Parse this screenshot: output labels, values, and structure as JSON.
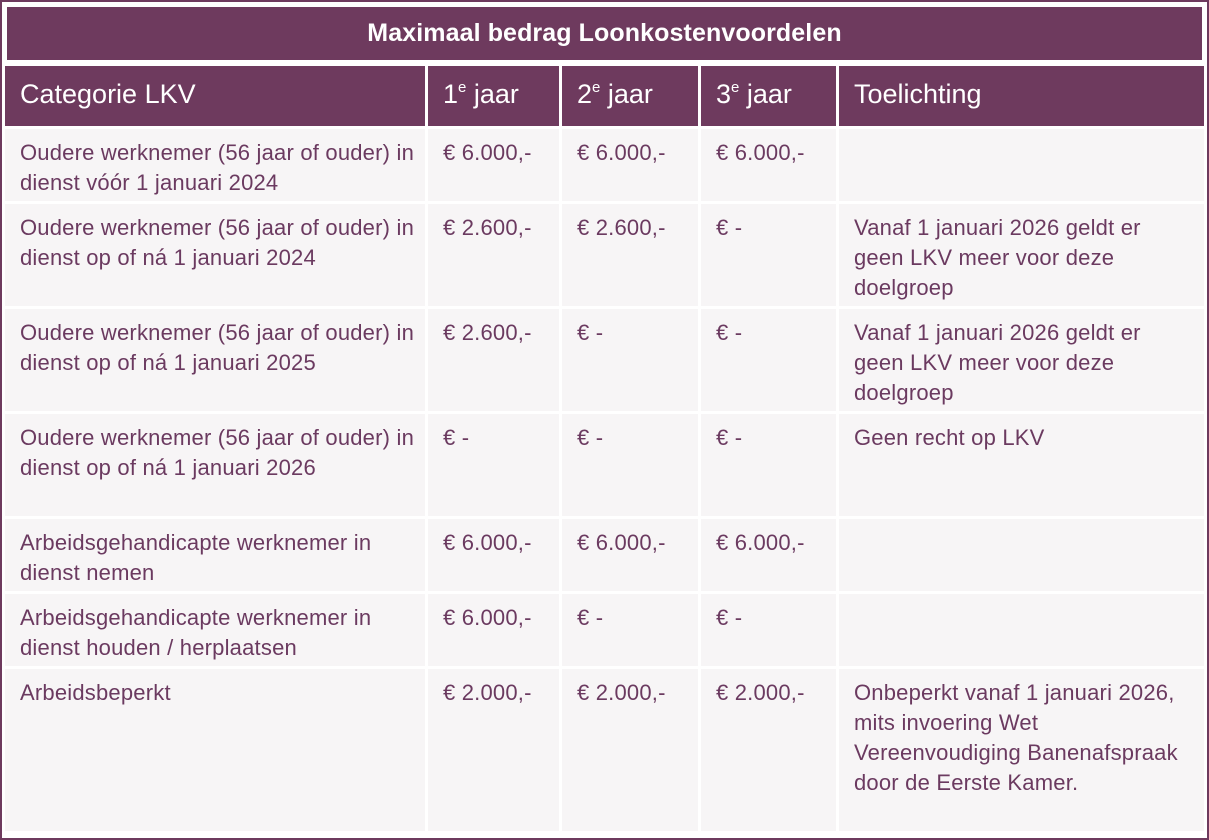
{
  "title": "Maximaal bedrag Loonkostenvoordelen",
  "headers": {
    "category": "Categorie LKV",
    "year1_num": "1",
    "year2_num": "2",
    "year3_num": "3",
    "year_sup": "e",
    "year_word": " jaar",
    "explanation": "Toelichting"
  },
  "rows": [
    {
      "category": "Oudere werknemer (56 jaar of ouder) in dienst vóór 1 januari 2024",
      "year1": "€ 6.000,-",
      "year2": "€ 6.000,-",
      "year3": "€ 6.000,-",
      "note": ""
    },
    {
      "category": "Oudere werknemer (56 jaar of ouder) in dienst op of ná 1 januari 2024",
      "year1": "€ 2.600,-",
      "year2": "€ 2.600,-",
      "year3": "€ -",
      "note": "Vanaf 1 januari 2026 geldt er geen LKV meer voor deze doelgroep"
    },
    {
      "category": "Oudere werknemer (56 jaar of ouder) in dienst op of ná 1 januari 2025",
      "year1": "€ 2.600,-",
      "year2": "€ -",
      "year3": "€ -",
      "note": "Vanaf 1 januari 2026 geldt er geen LKV meer voor deze doelgroep"
    },
    {
      "category": "Oudere werknemer (56 jaar of ouder) in dienst op of ná 1 januari 2026",
      "year1": "€ -",
      "year2": "€ -",
      "year3": "€ -",
      "note": "Geen recht op LKV"
    },
    {
      "category": "Arbeidsgehandicapte werknemer in dienst nemen",
      "year1": "€ 6.000,-",
      "year2": "€ 6.000,-",
      "year3": "€ 6.000,-",
      "note": ""
    },
    {
      "category": "Arbeidsgehandicapte werknemer in dienst houden / herplaatsen",
      "year1": "€ 6.000,-",
      "year2": "€ -",
      "year3": "€ -",
      "note": ""
    },
    {
      "category": "Arbeidsbeperkt",
      "year1": "€ 2.000,-",
      "year2": "€ 2.000,-",
      "year3": "€ 2.000,-",
      "note": "Onbeperkt vanaf 1 januari 2026, mits invoering Wet Vereenvoudiging Banenafspraak door de Eerste Kamer."
    }
  ],
  "colors": {
    "header_bg": "#6e3a5e",
    "header_text": "#ffffff",
    "cell_bg": "#f7f5f6",
    "cell_text": "#6b3a60"
  }
}
